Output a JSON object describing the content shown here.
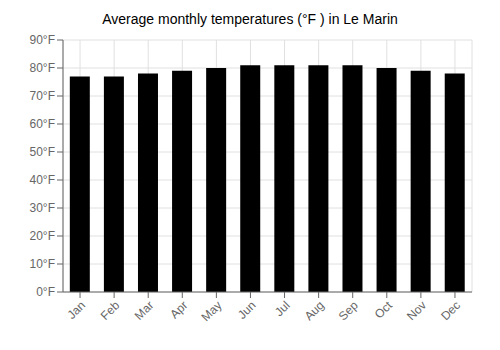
{
  "chart_data": {
    "type": "bar",
    "title": "Average monthly temperatures (°F ) in Le Marin",
    "categories": [
      "Jan",
      "Feb",
      "Mar",
      "Apr",
      "May",
      "Jun",
      "Jul",
      "Aug",
      "Sep",
      "Oct",
      "Nov",
      "Dec"
    ],
    "values": [
      77,
      77,
      78,
      79,
      80,
      81,
      81,
      81,
      81,
      80,
      79,
      78
    ],
    "ylim": [
      0,
      90
    ],
    "yticks": [
      {
        "value": 0,
        "label": "0°F"
      },
      {
        "value": 10,
        "label": "10°F"
      },
      {
        "value": 20,
        "label": "20°F"
      },
      {
        "value": 30,
        "label": "30°F"
      },
      {
        "value": 40,
        "label": "40°F"
      },
      {
        "value": 50,
        "label": "50°F"
      },
      {
        "value": 60,
        "label": "60°F"
      },
      {
        "value": 70,
        "label": "70°F"
      },
      {
        "value": 80,
        "label": "80°F"
      },
      {
        "value": 90,
        "label": "90°F"
      }
    ],
    "grid": true
  }
}
